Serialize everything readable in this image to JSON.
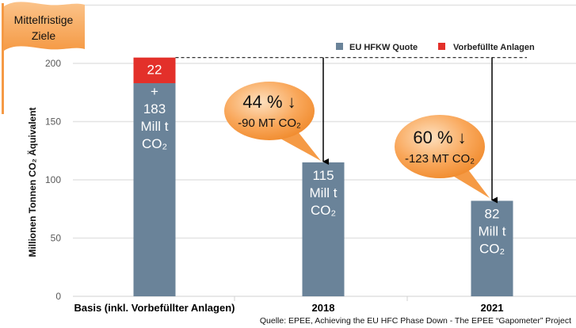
{
  "flag_label": [
    "Mittelfristige",
    "Ziele"
  ],
  "source": "Quelle: EPEE, Achieving the EU HFC Phase Down - The EPEE “Gapometer” Project",
  "chart_data": {
    "type": "bar",
    "stacked": true,
    "ylabel": "Millionen Tonnen CO₂ Äquivalent",
    "ylim": [
      0,
      250
    ],
    "yticks": [
      0,
      50,
      100,
      150,
      200
    ],
    "grid": true,
    "legend_position": "top-right",
    "categories": [
      "Basis (inkl. Vorbefüllter Anlagen)",
      "2018",
      "2021"
    ],
    "series": [
      {
        "name": "EU HFKW Quote",
        "color": "#6a8399",
        "values": [
          183,
          115,
          82
        ]
      },
      {
        "name": "Vorbefüllte Anlagen",
        "color": "#e3302a",
        "values": [
          22,
          0,
          0
        ]
      }
    ],
    "bar_labels": [
      {
        "top": "22",
        "lines": [
          "+",
          "183",
          "Mill t",
          "CO₂"
        ]
      },
      {
        "lines": [
          "115",
          "Mill t",
          "CO₂"
        ]
      },
      {
        "lines": [
          "82",
          "Mill t",
          "CO₂"
        ]
      }
    ],
    "annotations": [
      {
        "category": "2018",
        "line1": "44 % ↓",
        "line2": "-90 MT CO₂"
      },
      {
        "category": "2021",
        "line1": "60 % ↓",
        "line2": "-123 MT CO₂"
      }
    ],
    "reference_line_value": 205
  }
}
